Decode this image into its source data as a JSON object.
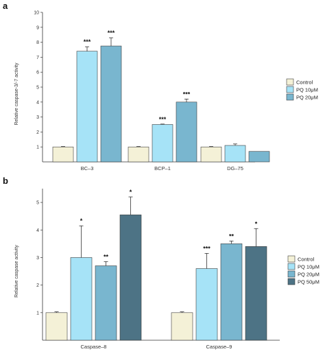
{
  "chart_data": [
    {
      "panel": "a",
      "type": "bar",
      "ylabel": "Relative caspase-3/-7 activity",
      "ylim": [
        0,
        10
      ],
      "yticks": [
        1,
        2,
        3,
        4,
        5,
        6,
        7,
        8,
        9,
        10
      ],
      "categories": [
        "BC–3",
        "BCP–1",
        "DG–75"
      ],
      "series": [
        {
          "name": "Control",
          "color": "#f4f1d7",
          "values": [
            1.0,
            1.0,
            1.0
          ],
          "errors": [
            0.03,
            0.03,
            0.03
          ],
          "sig": [
            "",
            "",
            ""
          ]
        },
        {
          "name": "PQ 10μM",
          "color": "#a6e3f7",
          "values": [
            7.4,
            2.5,
            1.1
          ],
          "errors": [
            0.3,
            0.03,
            0.1
          ],
          "sig": [
            "***",
            "***",
            ""
          ]
        },
        {
          "name": "PQ 20μM",
          "color": "#79b6cf",
          "values": [
            7.75,
            4.0,
            0.7
          ],
          "errors": [
            0.55,
            0.2,
            0.0
          ],
          "sig": [
            "***",
            "***",
            ""
          ]
        }
      ],
      "legend": [
        "Control",
        "PQ 10μM",
        "PQ 20μM"
      ]
    },
    {
      "panel": "b",
      "type": "bar",
      "ylabel": "Relative caspase activity",
      "ylim": [
        0,
        5.5
      ],
      "yticks": [
        1,
        2,
        3,
        4,
        5
      ],
      "categories": [
        "Caspase–8",
        "Caspase–9"
      ],
      "series": [
        {
          "name": "Control",
          "color": "#f4f1d7",
          "values": [
            1.0,
            1.0
          ],
          "errors": [
            0.03,
            0.03
          ],
          "sig": [
            "",
            ""
          ]
        },
        {
          "name": "PQ 10μM",
          "color": "#a6e3f7",
          "values": [
            3.0,
            2.6
          ],
          "errors": [
            1.15,
            0.55
          ],
          "sig": [
            "*",
            "***"
          ]
        },
        {
          "name": "PQ 20μM",
          "color": "#79b6cf",
          "values": [
            2.7,
            3.5
          ],
          "errors": [
            0.15,
            0.1
          ],
          "sig": [
            "**",
            "**"
          ]
        },
        {
          "name": "PQ 50μM",
          "color": "#4d7385",
          "values": [
            4.55,
            3.4
          ],
          "errors": [
            0.65,
            0.65
          ],
          "sig": [
            "*",
            "*"
          ]
        }
      ],
      "legend": [
        "Control",
        "PQ 10μM",
        "PQ 20μM",
        "PQ 50μM"
      ]
    }
  ]
}
